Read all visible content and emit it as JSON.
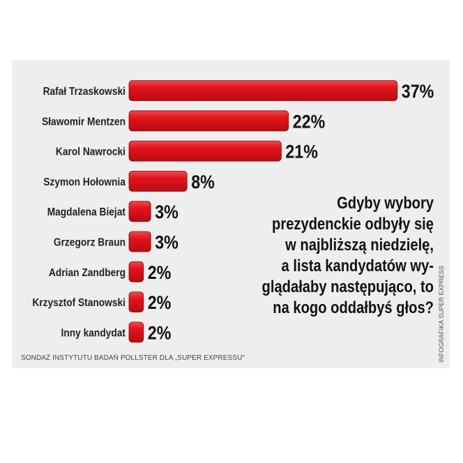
{
  "chart_data": {
    "type": "bar",
    "orientation": "horizontal",
    "categories": [
      "Rafał Trzaskowski",
      "Sławomir Mentzen",
      "Karol Nawrocki",
      "Szymon Hołownia",
      "Magdalena Biejat",
      "Grzegorz Braun",
      "Adrian Zandberg",
      "Krzysztof Stanowski",
      "Inny kandydat"
    ],
    "values": [
      37,
      22,
      21,
      8,
      3,
      3,
      2,
      2,
      2
    ],
    "value_labels": [
      "37%",
      "22%",
      "21%",
      "8%",
      "3%",
      "3%",
      "2%",
      "2%",
      "2%"
    ],
    "bar_color": "#e3121b",
    "title_lines": [
      "Gdyby wybory",
      "prezydenckie odbyły się",
      "w najbliższą niedzielę,",
      "a lista kandydatów wy-",
      "glądałaby następująco, to",
      "na kogo oddałbyś głos?"
    ],
    "source": "SONDAŻ INSTYTUTU BADAŃ POLLSTER DLA „SUPER EXPRESSU\"",
    "credit": "INFOGRAFIKA SUPER EXPRESS",
    "grid": false,
    "legend": "none"
  },
  "colors": {
    "background": "#ffffff",
    "panel": "#eeeeee",
    "bar": "#e3121b",
    "text": "#111111"
  }
}
